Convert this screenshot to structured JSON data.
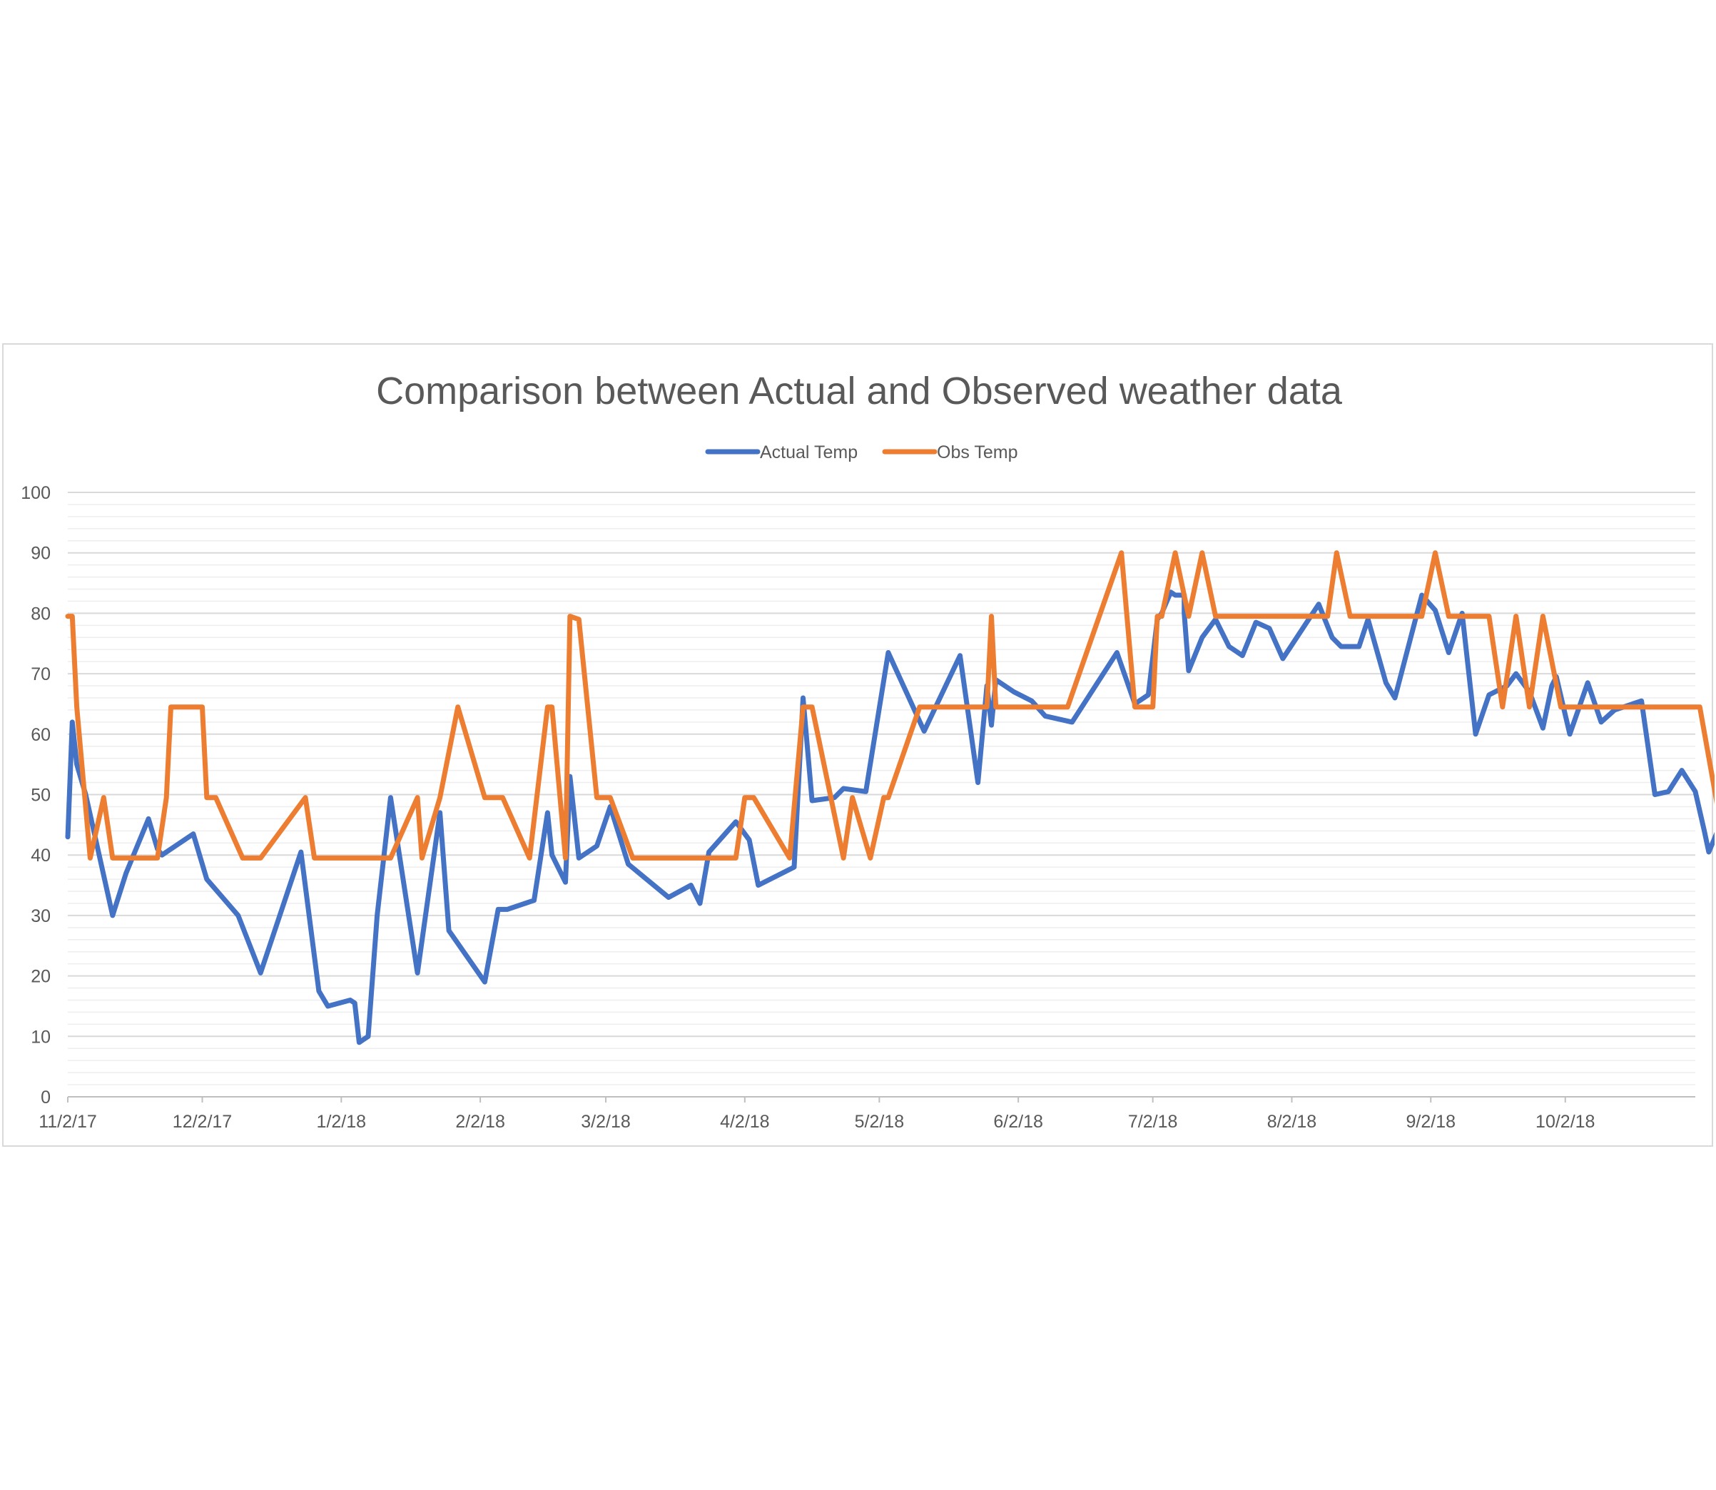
{
  "chart_data": {
    "type": "line",
    "title": "Comparison between Actual and Observed weather data",
    "xlabel": "",
    "ylabel": "",
    "x_axis_type": "date",
    "x_range": [
      "2017-11-02",
      "2018-10-31"
    ],
    "x_tick_labels": [
      {
        "date": "2017-11-02",
        "label": "11/2/17"
      },
      {
        "date": "2017-12-02",
        "label": "12/2/17"
      },
      {
        "date": "2018-01-02",
        "label": "1/2/18"
      },
      {
        "date": "2018-02-02",
        "label": "2/2/18"
      },
      {
        "date": "2018-03-02",
        "label": "3/2/18"
      },
      {
        "date": "2018-04-02",
        "label": "4/2/18"
      },
      {
        "date": "2018-05-02",
        "label": "5/2/18"
      },
      {
        "date": "2018-06-02",
        "label": "6/2/18"
      },
      {
        "date": "2018-07-02",
        "label": "7/2/18"
      },
      {
        "date": "2018-08-02",
        "label": "8/2/18"
      },
      {
        "date": "2018-09-02",
        "label": "9/2/18"
      },
      {
        "date": "2018-10-02",
        "label": "10/2/18"
      }
    ],
    "ylim": [
      0,
      100
    ],
    "y_ticks": [
      0,
      10,
      20,
      30,
      40,
      50,
      60,
      70,
      80,
      90,
      100
    ],
    "y_minor_step": 2,
    "grid": true,
    "legend_position": "top-center",
    "series": [
      {
        "name": "Actual Temp",
        "color": "#4472c4",
        "points": [
          [
            "2017-11-02",
            43
          ],
          [
            "2017-11-03",
            62
          ],
          [
            "2017-11-04",
            55
          ],
          [
            "2017-11-06",
            50
          ],
          [
            "2017-11-09",
            40
          ],
          [
            "2017-11-12",
            30
          ],
          [
            "2017-11-15",
            37
          ],
          [
            "2017-11-20",
            46
          ],
          [
            "2017-11-22",
            41
          ],
          [
            "2017-11-23",
            40
          ],
          [
            "2017-11-30",
            43.5
          ],
          [
            "2017-12-03",
            36
          ],
          [
            "2017-12-10",
            30
          ],
          [
            "2017-12-15",
            20.5
          ],
          [
            "2017-12-24",
            40.5
          ],
          [
            "2017-12-28",
            17.5
          ],
          [
            "2017-12-30",
            15
          ],
          [
            "2018-01-04",
            16
          ],
          [
            "2018-01-05",
            15.5
          ],
          [
            "2018-01-06",
            9
          ],
          [
            "2018-01-08",
            10
          ],
          [
            "2018-01-10",
            30
          ],
          [
            "2018-01-13",
            49.5
          ],
          [
            "2018-01-19",
            20.5
          ],
          [
            "2018-01-24",
            47
          ],
          [
            "2018-01-26",
            27.5
          ],
          [
            "2018-02-03",
            19
          ],
          [
            "2018-02-06",
            31
          ],
          [
            "2018-02-08",
            31
          ],
          [
            "2018-02-14",
            32.5
          ],
          [
            "2018-02-17",
            47
          ],
          [
            "2018-02-18",
            40
          ],
          [
            "2018-02-21",
            35.5
          ],
          [
            "2018-02-22",
            53
          ],
          [
            "2018-02-24",
            39.5
          ],
          [
            "2018-02-28",
            41.5
          ],
          [
            "2018-03-03",
            48
          ],
          [
            "2018-03-07",
            38.5
          ],
          [
            "2018-03-16",
            33
          ],
          [
            "2018-03-21",
            35
          ],
          [
            "2018-03-23",
            32
          ],
          [
            "2018-03-25",
            40.5
          ],
          [
            "2018-03-31",
            45.5
          ],
          [
            "2018-04-03",
            42.5
          ],
          [
            "2018-04-05",
            35
          ],
          [
            "2018-04-13",
            38
          ],
          [
            "2018-04-15",
            66
          ],
          [
            "2018-04-17",
            49
          ],
          [
            "2018-04-22",
            49.5
          ],
          [
            "2018-04-24",
            51
          ],
          [
            "2018-04-29",
            50.5
          ],
          [
            "2018-05-04",
            73.5
          ],
          [
            "2018-05-12",
            60.5
          ],
          [
            "2018-05-20",
            73
          ],
          [
            "2018-05-24",
            52
          ],
          [
            "2018-05-26",
            68
          ],
          [
            "2018-05-27",
            61.5
          ],
          [
            "2018-05-28",
            69
          ],
          [
            "2018-06-01",
            67
          ],
          [
            "2018-06-05",
            65.5
          ],
          [
            "2018-06-08",
            63
          ],
          [
            "2018-06-14",
            62
          ],
          [
            "2018-06-24",
            73.5
          ],
          [
            "2018-06-28",
            65
          ],
          [
            "2018-07-01",
            66.5
          ],
          [
            "2018-07-03",
            79
          ],
          [
            "2018-07-04",
            80
          ],
          [
            "2018-07-06",
            83.5
          ],
          [
            "2018-07-07",
            83
          ],
          [
            "2018-07-09",
            83
          ],
          [
            "2018-07-09",
            80
          ],
          [
            "2018-07-10",
            70.5
          ],
          [
            "2018-07-13",
            76
          ],
          [
            "2018-07-16",
            79
          ],
          [
            "2018-07-19",
            74.5
          ],
          [
            "2018-07-22",
            73
          ],
          [
            "2018-07-25",
            78.5
          ],
          [
            "2018-07-28",
            77.5
          ],
          [
            "2018-07-31",
            72.5
          ],
          [
            "2018-08-08",
            81.5
          ],
          [
            "2018-08-11",
            76
          ],
          [
            "2018-08-13",
            74.5
          ],
          [
            "2018-08-17",
            74.5
          ],
          [
            "2018-08-19",
            79
          ],
          [
            "2018-08-23",
            68.5
          ],
          [
            "2018-08-25",
            66
          ],
          [
            "2018-08-31",
            83
          ],
          [
            "2018-09-03",
            80.5
          ],
          [
            "2018-09-06",
            73.5
          ],
          [
            "2018-09-09",
            80
          ],
          [
            "2018-09-12",
            60
          ],
          [
            "2018-09-15",
            66.5
          ],
          [
            "2018-09-19",
            68
          ],
          [
            "2018-09-21",
            70
          ],
          [
            "2018-09-24",
            67
          ],
          [
            "2018-09-27",
            61
          ],
          [
            "2018-09-29",
            68
          ],
          [
            "2018-09-30",
            69.5
          ],
          [
            "2018-10-03",
            60
          ],
          [
            "2018-10-07",
            68.5
          ],
          [
            "2018-10-10",
            62
          ],
          [
            "2018-10-13",
            64
          ],
          [
            "2018-10-19",
            65.5
          ],
          [
            "2018-10-22",
            50
          ],
          [
            "2018-10-25",
            50.5
          ],
          [
            "2018-10-28",
            54
          ],
          [
            "2018-10-31",
            50.5
          ],
          [
            "2018-11-02",
            44
          ],
          [
            "2018-11-03",
            40.5
          ],
          [
            "2018-11-05",
            44
          ],
          [
            "2018-11-07",
            46
          ]
        ]
      },
      {
        "name": "Obs Temp",
        "color": "#ed7d31",
        "points": [
          [
            "2017-11-02",
            79.5
          ],
          [
            "2017-11-03",
            79.5
          ],
          [
            "2017-11-04",
            64.5
          ],
          [
            "2017-11-07",
            39.5
          ],
          [
            "2017-11-10",
            49.5
          ],
          [
            "2017-11-12",
            39.5
          ],
          [
            "2017-11-22",
            39.5
          ],
          [
            "2017-11-24",
            49.5
          ],
          [
            "2017-11-25",
            64.5
          ],
          [
            "2017-12-02",
            64.5
          ],
          [
            "2017-12-03",
            49.5
          ],
          [
            "2017-12-05",
            49.5
          ],
          [
            "2017-12-11",
            39.5
          ],
          [
            "2017-12-15",
            39.5
          ],
          [
            "2017-12-25",
            49.5
          ],
          [
            "2017-12-27",
            39.5
          ],
          [
            "2018-01-13",
            39.5
          ],
          [
            "2018-01-19",
            49.5
          ],
          [
            "2018-01-20",
            39.5
          ],
          [
            "2018-01-24",
            49.5
          ],
          [
            "2018-01-28",
            64.5
          ],
          [
            "2018-02-03",
            49.5
          ],
          [
            "2018-02-07",
            49.5
          ],
          [
            "2018-02-13",
            39.5
          ],
          [
            "2018-02-17",
            64.5
          ],
          [
            "2018-02-18",
            64.5
          ],
          [
            "2018-02-21",
            39.5
          ],
          [
            "2018-02-22",
            79.5
          ],
          [
            "2018-02-24",
            79
          ],
          [
            "2018-02-28",
            49.5
          ],
          [
            "2018-03-03",
            49.5
          ],
          [
            "2018-03-08",
            39.5
          ],
          [
            "2018-03-31",
            39.5
          ],
          [
            "2018-04-02",
            49.5
          ],
          [
            "2018-04-04",
            49.5
          ],
          [
            "2018-04-12",
            39.5
          ],
          [
            "2018-04-15",
            64.5
          ],
          [
            "2018-04-17",
            64.5
          ],
          [
            "2018-04-24",
            39.5
          ],
          [
            "2018-04-26",
            49.5
          ],
          [
            "2018-04-30",
            39.5
          ],
          [
            "2018-05-03",
            49.5
          ],
          [
            "2018-05-04",
            49.5
          ],
          [
            "2018-05-11",
            64.5
          ],
          [
            "2018-05-26",
            64.5
          ],
          [
            "2018-05-27",
            79.5
          ],
          [
            "2018-05-28",
            64.5
          ],
          [
            "2018-06-13",
            64.5
          ],
          [
            "2018-06-25",
            90
          ],
          [
            "2018-06-28",
            64.5
          ],
          [
            "2018-07-02",
            64.5
          ],
          [
            "2018-07-03",
            79.5
          ],
          [
            "2018-07-04",
            79.5
          ],
          [
            "2018-07-07",
            90
          ],
          [
            "2018-07-10",
            79.5
          ],
          [
            "2018-07-13",
            90
          ],
          [
            "2018-07-16",
            79.5
          ],
          [
            "2018-08-10",
            79.5
          ],
          [
            "2018-08-12",
            90
          ],
          [
            "2018-08-15",
            79.5
          ],
          [
            "2018-08-31",
            79.5
          ],
          [
            "2018-09-03",
            90
          ],
          [
            "2018-09-06",
            79.5
          ],
          [
            "2018-09-15",
            79.5
          ],
          [
            "2018-09-18",
            64.5
          ],
          [
            "2018-09-21",
            79.5
          ],
          [
            "2018-09-24",
            64.5
          ],
          [
            "2018-09-27",
            79.5
          ],
          [
            "2018-10-01",
            64.5
          ],
          [
            "2018-11-01",
            64.5
          ],
          [
            "2018-11-07",
            39.5
          ],
          [
            "2018-11-10",
            49.5
          ]
        ]
      }
    ]
  }
}
